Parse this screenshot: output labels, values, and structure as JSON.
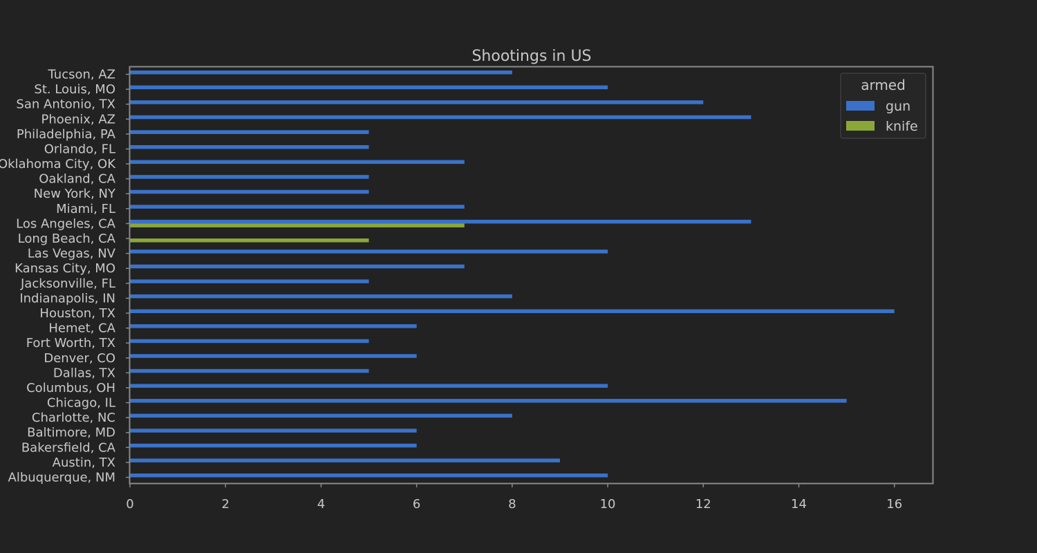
{
  "chart_data": {
    "type": "bar",
    "orientation": "horizontal",
    "title": "Shootings in US",
    "xlabel": "",
    "ylabel": "",
    "xlim": [
      0,
      16.8
    ],
    "xticks": [
      0,
      2,
      4,
      6,
      8,
      10,
      12,
      14,
      16
    ],
    "grid": false,
    "legend": {
      "title": "armed",
      "placement": "top-right"
    },
    "categories": [
      "Albuquerque, NM",
      "Austin, TX",
      "Bakersfield, CA",
      "Baltimore, MD",
      "Charlotte, NC",
      "Chicago, IL",
      "Columbus, OH",
      "Dallas, TX",
      "Denver, CO",
      "Fort Worth, TX",
      "Hemet, CA",
      "Houston, TX",
      "Indianapolis, IN",
      "Jacksonville, FL",
      "Kansas City, MO",
      "Las Vegas, NV",
      "Long Beach, CA",
      "Los Angeles, CA",
      "Miami, FL",
      "New York, NY",
      "Oakland, CA",
      "Oklahoma City, OK",
      "Orlando, FL",
      "Philadelphia, PA",
      "Phoenix, AZ",
      "San Antonio, TX",
      "St. Louis, MO",
      "Tucson, AZ"
    ],
    "series": [
      {
        "name": "gun",
        "color": "#3a72c9",
        "values": [
          10,
          9,
          6,
          6,
          8,
          15,
          10,
          5,
          6,
          5,
          6,
          16,
          8,
          5,
          7,
          10,
          null,
          13,
          7,
          5,
          5,
          7,
          5,
          5,
          13,
          12,
          10,
          8
        ]
      },
      {
        "name": "knife",
        "color": "#8aa83a",
        "values": [
          null,
          null,
          null,
          null,
          null,
          null,
          null,
          null,
          null,
          null,
          null,
          null,
          null,
          null,
          null,
          null,
          5,
          7,
          null,
          null,
          null,
          null,
          null,
          null,
          null,
          null,
          null,
          null
        ]
      }
    ]
  }
}
